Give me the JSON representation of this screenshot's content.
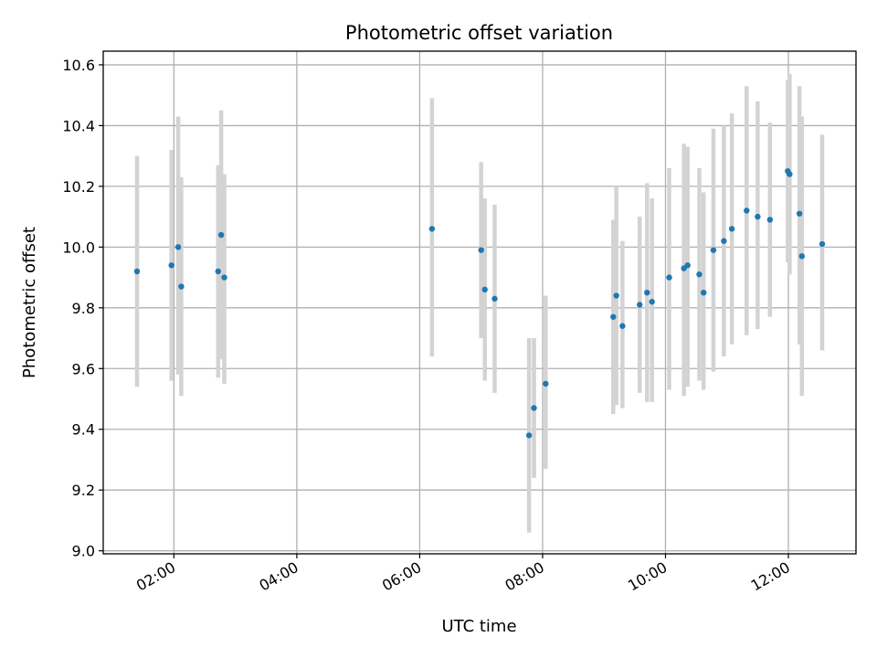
{
  "chart_data": {
    "type": "scatter",
    "title": "Photometric offset variation",
    "xlabel": "UTC time",
    "ylabel": "Photometric offset",
    "xlim": [
      0.85,
      13.1
    ],
    "ylim": [
      8.99,
      10.645
    ],
    "grid": true,
    "xticks": [
      {
        "value": 2,
        "label": "02:00"
      },
      {
        "value": 4,
        "label": "04:00"
      },
      {
        "value": 6,
        "label": "06:00"
      },
      {
        "value": 8,
        "label": "08:00"
      },
      {
        "value": 10,
        "label": "10:00"
      },
      {
        "value": 12,
        "label": "12:00"
      }
    ],
    "yticks": [
      {
        "value": 9.0,
        "label": "9.0"
      },
      {
        "value": 9.2,
        "label": "9.2"
      },
      {
        "value": 9.4,
        "label": "9.4"
      },
      {
        "value": 9.6,
        "label": "9.6"
      },
      {
        "value": 9.8,
        "label": "9.8"
      },
      {
        "value": 10.0,
        "label": "10.0"
      },
      {
        "value": 10.2,
        "label": "10.2"
      },
      {
        "value": 10.4,
        "label": "10.4"
      },
      {
        "value": 10.6,
        "label": "10.6"
      }
    ],
    "series": [
      {
        "name": "offset",
        "color": "#1f77b4",
        "errorbar_color": "#d3d3d3",
        "points": [
          {
            "x": 1.4,
            "y": 9.92,
            "lo": 9.54,
            "hi": 10.3
          },
          {
            "x": 1.96,
            "y": 9.94,
            "lo": 9.56,
            "hi": 10.32
          },
          {
            "x": 2.07,
            "y": 10.0,
            "lo": 9.58,
            "hi": 10.43
          },
          {
            "x": 2.12,
            "y": 9.87,
            "lo": 9.51,
            "hi": 10.23
          },
          {
            "x": 2.72,
            "y": 9.92,
            "lo": 9.57,
            "hi": 10.27
          },
          {
            "x": 2.77,
            "y": 10.04,
            "lo": 9.63,
            "hi": 10.45
          },
          {
            "x": 2.82,
            "y": 9.9,
            "lo": 9.55,
            "hi": 10.24
          },
          {
            "x": 6.2,
            "y": 10.06,
            "lo": 9.64,
            "hi": 10.49
          },
          {
            "x": 7.0,
            "y": 9.99,
            "lo": 9.7,
            "hi": 10.28
          },
          {
            "x": 7.06,
            "y": 9.86,
            "lo": 9.56,
            "hi": 10.16
          },
          {
            "x": 7.22,
            "y": 9.83,
            "lo": 9.52,
            "hi": 10.14
          },
          {
            "x": 7.78,
            "y": 9.38,
            "lo": 9.06,
            "hi": 9.7
          },
          {
            "x": 7.86,
            "y": 9.47,
            "lo": 9.24,
            "hi": 9.7
          },
          {
            "x": 8.05,
            "y": 9.55,
            "lo": 9.27,
            "hi": 9.84
          },
          {
            "x": 9.15,
            "y": 9.77,
            "lo": 9.45,
            "hi": 10.09
          },
          {
            "x": 9.2,
            "y": 9.84,
            "lo": 9.48,
            "hi": 10.2
          },
          {
            "x": 9.3,
            "y": 9.74,
            "lo": 9.47,
            "hi": 10.02
          },
          {
            "x": 9.58,
            "y": 9.81,
            "lo": 9.52,
            "hi": 10.1
          },
          {
            "x": 9.7,
            "y": 9.85,
            "lo": 9.49,
            "hi": 10.21
          },
          {
            "x": 9.78,
            "y": 9.82,
            "lo": 9.49,
            "hi": 10.16
          },
          {
            "x": 10.06,
            "y": 9.9,
            "lo": 9.53,
            "hi": 10.26
          },
          {
            "x": 10.3,
            "y": 9.93,
            "lo": 9.51,
            "hi": 10.34
          },
          {
            "x": 10.36,
            "y": 9.94,
            "lo": 9.54,
            "hi": 10.33
          },
          {
            "x": 10.55,
            "y": 9.91,
            "lo": 9.56,
            "hi": 10.26
          },
          {
            "x": 10.62,
            "y": 9.85,
            "lo": 9.53,
            "hi": 10.18
          },
          {
            "x": 10.78,
            "y": 9.99,
            "lo": 9.59,
            "hi": 10.39
          },
          {
            "x": 10.95,
            "y": 10.02,
            "lo": 9.64,
            "hi": 10.4
          },
          {
            "x": 11.08,
            "y": 10.06,
            "lo": 9.68,
            "hi": 10.44
          },
          {
            "x": 11.32,
            "y": 10.12,
            "lo": 9.71,
            "hi": 10.53
          },
          {
            "x": 11.5,
            "y": 10.1,
            "lo": 9.73,
            "hi": 10.48
          },
          {
            "x": 11.7,
            "y": 10.09,
            "lo": 9.77,
            "hi": 10.41
          },
          {
            "x": 11.99,
            "y": 10.25,
            "lo": 9.95,
            "hi": 10.55
          },
          {
            "x": 12.02,
            "y": 10.24,
            "lo": 9.91,
            "hi": 10.57
          },
          {
            "x": 12.18,
            "y": 10.11,
            "lo": 9.68,
            "hi": 10.53
          },
          {
            "x": 12.22,
            "y": 9.97,
            "lo": 9.51,
            "hi": 10.43
          },
          {
            "x": 12.55,
            "y": 10.01,
            "lo": 9.66,
            "hi": 10.37
          }
        ]
      }
    ]
  }
}
